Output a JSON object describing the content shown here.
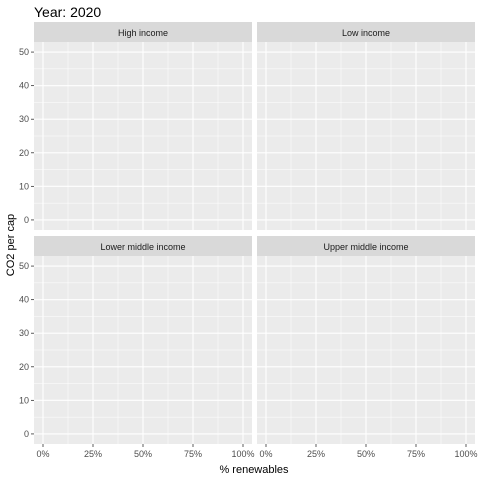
{
  "chart_data": {
    "type": "scatter",
    "title": "Year: 2020",
    "xlabel": "% renewables",
    "ylabel": "CO2 per cap",
    "xlim": [
      0,
      1
    ],
    "ylim": [
      0,
      50
    ],
    "x_ticks": [
      0,
      0.25,
      0.5,
      0.75,
      1
    ],
    "x_tick_labels": [
      "0%",
      "25%",
      "50%",
      "75%",
      "100%"
    ],
    "y_ticks": [
      0,
      10,
      20,
      30,
      40,
      50
    ],
    "y_tick_labels": [
      "0",
      "10",
      "20",
      "30",
      "40",
      "50"
    ],
    "grid": true,
    "facets": [
      {
        "label": "High income",
        "points": []
      },
      {
        "label": "Low income",
        "points": []
      },
      {
        "label": "Lower middle income",
        "points": []
      },
      {
        "label": "Upper middle income",
        "points": []
      }
    ]
  },
  "colors": {
    "panel_background": "#ebebeb",
    "strip_background": "#d9d9d9",
    "grid": "#ffffff",
    "text": "#1a1a1a",
    "tick_text": "#4d4d4d",
    "tick": "#333333"
  }
}
